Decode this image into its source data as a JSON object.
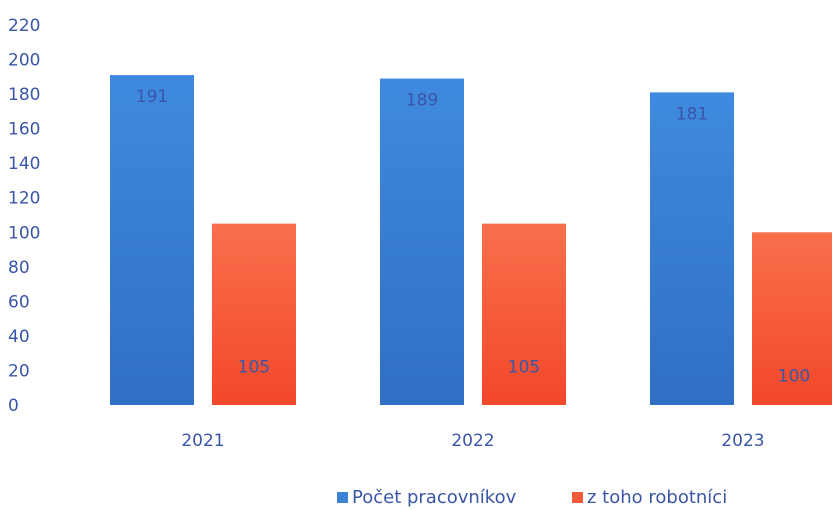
{
  "chart_data": {
    "type": "bar",
    "categories": [
      "2021",
      "2022",
      "2023"
    ],
    "series": [
      {
        "name": "Počet pracovníkov",
        "values": [
          191,
          189,
          181
        ],
        "color": "#3b82d6"
      },
      {
        "name": "z toho robotníci",
        "values": [
          105,
          105,
          100
        ],
        "color": "#f35a3a"
      }
    ],
    "yticks": [
      "0",
      "20",
      "40",
      "60",
      "80",
      "100",
      "120",
      "140",
      "160",
      "180",
      "200",
      "220"
    ],
    "ylim": [
      0,
      220
    ],
    "grid": false,
    "legend": "bottom-center",
    "title": "",
    "xlabel": "",
    "ylabel": ""
  }
}
